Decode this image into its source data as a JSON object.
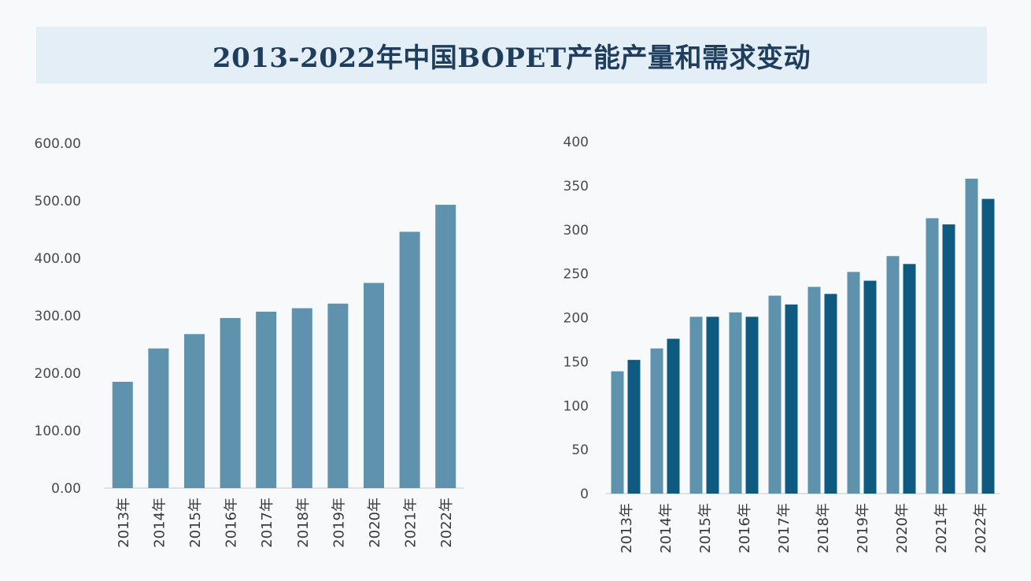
{
  "header": {
    "title": "2013-2022年中国BOPET产能产量和需求变动"
  },
  "colors": {
    "bar_light": "#5e92ad",
    "bar_dark": "#0f5a80",
    "axis": "#c9c9c9",
    "title_bg": "#e3eef7"
  },
  "chart_data": [
    {
      "type": "bar",
      "categories": [
        "2013年",
        "2014年",
        "2015年",
        "2016年",
        "2017年",
        "2018年",
        "2019年",
        "2020年",
        "2021年",
        "2022年"
      ],
      "y_ticks": [
        "0.00",
        "100.00",
        "200.00",
        "300.00",
        "400.00",
        "500.00",
        "600.00"
      ],
      "ylim": [
        0,
        600
      ],
      "series": [
        {
          "values": [
            185,
            243,
            268,
            296,
            307,
            313,
            321,
            357,
            446,
            493
          ]
        }
      ]
    },
    {
      "type": "bar",
      "categories": [
        "2013年",
        "2014年",
        "2015年",
        "2016年",
        "2017年",
        "2018年",
        "2019年",
        "2020年",
        "2021年",
        "2022年"
      ],
      "y_ticks": [
        "0",
        "50",
        "100",
        "150",
        "200",
        "250",
        "300",
        "350",
        "400"
      ],
      "ylim": [
        0,
        400
      ],
      "series": [
        {
          "values": [
            139,
            165,
            201,
            206,
            225,
            235,
            252,
            270,
            313,
            358
          ]
        },
        {
          "values": [
            152,
            176,
            201,
            201,
            215,
            227,
            242,
            261,
            306,
            335
          ]
        }
      ]
    }
  ]
}
